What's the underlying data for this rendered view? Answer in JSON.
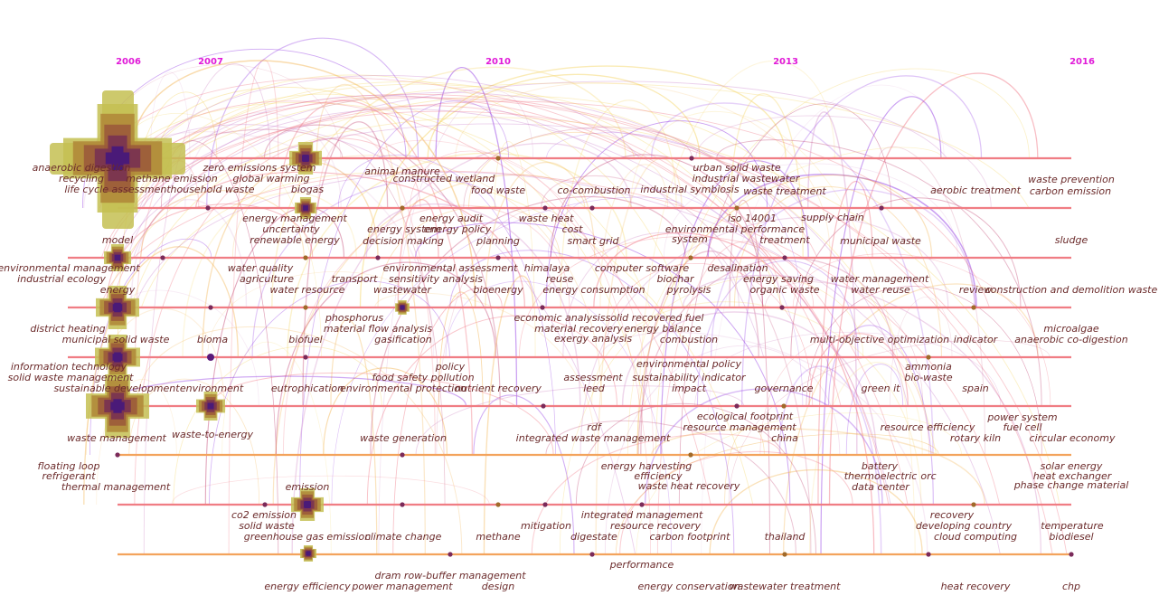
{
  "years": [
    "2006",
    "2007",
    "2010",
    "2013",
    "2016"
  ],
  "labels": [
    "anaerobic digestion",
    "recycling",
    "methane emission",
    "life cycle assessment",
    "household waste",
    "zero emissions system",
    "global warming",
    "biogas",
    "animal manure",
    "constructed wetland",
    "food waste",
    "co-combustion",
    "urban solid waste",
    "industrial wastewater",
    "industrial symbiosis",
    "waste treatment",
    "waste prevention",
    "carbon emission",
    "aerobic treatment",
    "energy management",
    "uncertainty",
    "renewable energy",
    "energy audit",
    "energy system",
    "energy policy",
    "decision making",
    "planning",
    "waste heat",
    "cost",
    "smart grid",
    "iso 14001",
    "environmental performance",
    "treatment",
    "system",
    "supply chain",
    "municipal waste",
    "sludge",
    "model",
    "environmental management",
    "industrial ecology",
    "water quality",
    "agriculture",
    "transport",
    "water resource",
    "environmental assessment",
    "sensitivity analysis",
    "wastewater",
    "bioenergy",
    "himalaya",
    "reuse",
    "energy consumption",
    "computer software",
    "biochar",
    "pyrolysis",
    "desalination",
    "energy saving",
    "organic waste",
    "water management",
    "water reuse",
    "review",
    "construction and demolition waste",
    "energy",
    "district heating",
    "municipal solid waste",
    "bioma",
    "biofuel",
    "phosphorus",
    "material flow analysis",
    "gasification",
    "economic analysis",
    "solid recovered fuel",
    "material recovery",
    "energy balance",
    "exergy analysis",
    "combustion",
    "multi-objective optimization",
    "indicator",
    "microalgae",
    "anaerobic co-digestion",
    "information technology",
    "solid waste management",
    "sustainable development",
    "environment",
    "eutrophication",
    "policy",
    "food safety pollution",
    "environmental protection",
    "nutrient recovery",
    "assessment",
    "leed",
    "environmental policy",
    "sustainability indicator",
    "impact",
    "governance",
    "ammonia",
    "bio-waste",
    "green it",
    "spain",
    "ecological footprint",
    "resource management",
    "china",
    "resource efficiency",
    "power system",
    "fuel cell",
    "rotary kiln",
    "circular economy",
    "rdf",
    "integrated waste management",
    "waste management",
    "waste-to-energy",
    "waste generation",
    "floating loop",
    "refrigerant",
    "thermal management",
    "energy harvesting",
    "efficiency",
    "waste heat recovery",
    "battery",
    "thermoelectric",
    "orc",
    "data center",
    "solar energy",
    "heat exchanger",
    "phase change material",
    "emission",
    "co2 emission",
    "solid waste",
    "greenhouse gas emission",
    "climate change",
    "methane",
    "mitigation",
    "digestate",
    "integrated management",
    "resource recovery",
    "carbon footprint",
    "thailand",
    "recovery",
    "developing country",
    "cloud computing",
    "temperature",
    "biodiesel",
    "performance",
    "dram row-buffer management",
    "energy efficiency",
    "power management",
    "design",
    "energy conservation",
    "wastewater treatment",
    "heat recovery",
    "chp"
  ]
}
